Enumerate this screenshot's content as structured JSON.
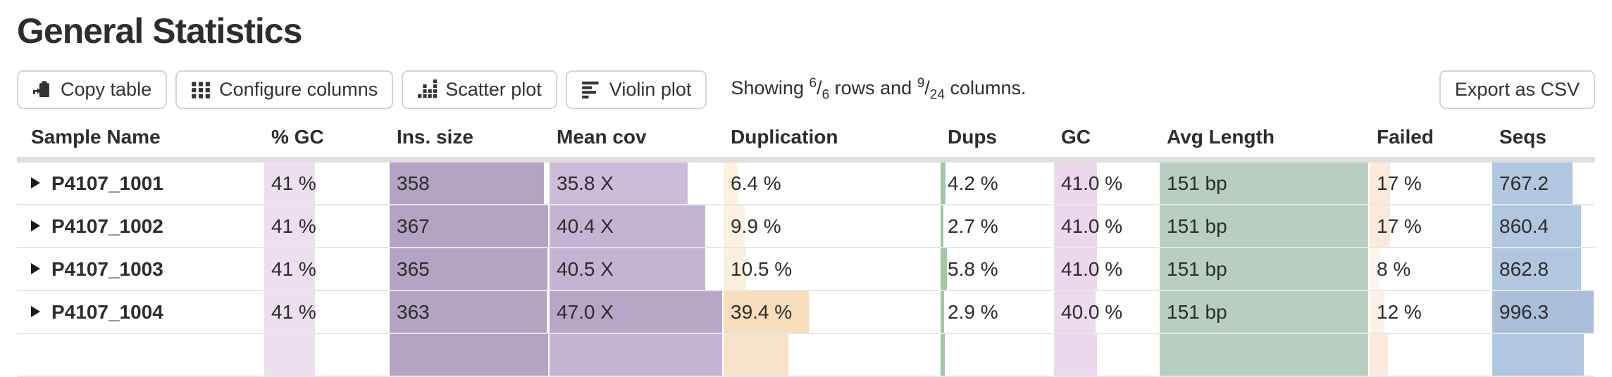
{
  "title": "General Statistics",
  "toolbar": {
    "copy_label": "Copy table",
    "configure_label": "Configure columns",
    "scatter_label": "Scatter plot",
    "violin_label": "Violin plot",
    "export_label": "Export as CSV",
    "status": {
      "prefix": "Showing ",
      "rows_shown": "6",
      "slash1": "/",
      "rows_total": "6",
      "mid": " rows and ",
      "cols_shown": "9",
      "slash2": "/",
      "cols_total": "24",
      "suffix": " columns."
    }
  },
  "table": {
    "headers": [
      "Sample Name",
      "% GC",
      "Ins. size",
      "Mean cov",
      "Duplication",
      "Dups",
      "GC",
      "Avg Length",
      "Failed",
      "Seqs"
    ],
    "rows": [
      {
        "sample": "P4107_1001",
        "cells": [
          {
            "text": "41 %",
            "frac": 0.41,
            "color": "#ecdfee"
          },
          {
            "text": "358",
            "frac": 0.975,
            "color": "#b2a4c2"
          },
          {
            "text": "35.8 X",
            "frac": 0.8,
            "color": "#ccbbd9"
          },
          {
            "text": "6.4 %",
            "frac": 0.064,
            "color": "#fcf2df"
          },
          {
            "text": "4.2 %",
            "frac": 0.042,
            "color": "#a2c7a5"
          },
          {
            "text": "41.0 %",
            "frac": 0.41,
            "color": "#ebd8ec"
          },
          {
            "text": "151 bp",
            "frac": 1.0,
            "color": "#b8cec0"
          },
          {
            "text": "17 %",
            "frac": 0.17,
            "color": "#fbe9dc"
          },
          {
            "text": "767.2",
            "frac": 0.79,
            "color": "#b1c7e0"
          }
        ]
      },
      {
        "sample": "P4107_1002",
        "cells": [
          {
            "text": "41 %",
            "frac": 0.41,
            "color": "#ecdfee"
          },
          {
            "text": "367",
            "frac": 1.0,
            "color": "#b2a4c2"
          },
          {
            "text": "40.4 X",
            "frac": 0.9,
            "color": "#c5b3d3"
          },
          {
            "text": "9.9 %",
            "frac": 0.099,
            "color": "#fcf2df"
          },
          {
            "text": "2.7 %",
            "frac": 0.027,
            "color": "#a2c7a5"
          },
          {
            "text": "41.0 %",
            "frac": 0.41,
            "color": "#ebd8ec"
          },
          {
            "text": "151 bp",
            "frac": 1.0,
            "color": "#b8cec0"
          },
          {
            "text": "17 %",
            "frac": 0.17,
            "color": "#fbe9dc"
          },
          {
            "text": "860.4",
            "frac": 0.875,
            "color": "#b1c7e0"
          }
        ]
      },
      {
        "sample": "P4107_1003",
        "cells": [
          {
            "text": "41 %",
            "frac": 0.41,
            "color": "#ecdfee"
          },
          {
            "text": "365",
            "frac": 0.995,
            "color": "#b2a4c2"
          },
          {
            "text": "40.5 X",
            "frac": 0.9,
            "color": "#c5b3d3"
          },
          {
            "text": "10.5 %",
            "frac": 0.105,
            "color": "#fbf0dc"
          },
          {
            "text": "5.8 %",
            "frac": 0.058,
            "color": "#a2c7a5"
          },
          {
            "text": "41.0 %",
            "frac": 0.41,
            "color": "#ebd8ec"
          },
          {
            "text": "151 bp",
            "frac": 1.0,
            "color": "#b8cec0"
          },
          {
            "text": "8 %",
            "frac": 0.08,
            "color": "#fef6ee"
          },
          {
            "text": "862.8",
            "frac": 0.877,
            "color": "#b1c7e0"
          }
        ]
      },
      {
        "sample": "P4107_1004",
        "cells": [
          {
            "text": "41 %",
            "frac": 0.41,
            "color": "#ecdfee"
          },
          {
            "text": "363",
            "frac": 0.99,
            "color": "#b2a4c2"
          },
          {
            "text": "47.0 X",
            "frac": 1.0,
            "color": "#b7a6c6"
          },
          {
            "text": "39.4 %",
            "frac": 0.394,
            "color": "#f7ddbb"
          },
          {
            "text": "2.9 %",
            "frac": 0.029,
            "color": "#a2c7a5"
          },
          {
            "text": "40.0 %",
            "frac": 0.4,
            "color": "#ecdaed"
          },
          {
            "text": "151 bp",
            "frac": 1.0,
            "color": "#b8cec0"
          },
          {
            "text": "12 %",
            "frac": 0.12,
            "color": "#fdf0e7"
          },
          {
            "text": "996.3",
            "frac": 1.0,
            "color": "#aabfd9"
          }
        ]
      }
    ],
    "partial_row": {
      "cells": [
        {
          "frac": 0.41,
          "color": "#ecdfee"
        },
        {
          "frac": 1.0,
          "color": "#b2a4c2"
        },
        {
          "frac": 1.0,
          "color": "#c5b3d3"
        },
        {
          "frac": 0.3,
          "color": "#f8e3c8"
        },
        {
          "frac": 0.04,
          "color": "#a2c7a5"
        },
        {
          "frac": 0.41,
          "color": "#ebd8ec"
        },
        {
          "frac": 1.0,
          "color": "#b8cec0"
        },
        {
          "frac": 0.15,
          "color": "#fbe9dc"
        },
        {
          "frac": 0.9,
          "color": "#b1c7e0"
        }
      ]
    }
  }
}
